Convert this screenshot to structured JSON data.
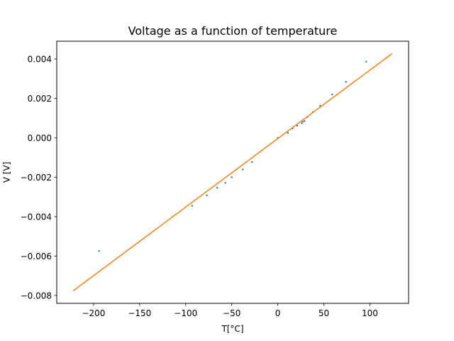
{
  "chart_data": {
    "type": "scatter",
    "title": "Voltage as a function of temperature",
    "xlabel": "T[°C]",
    "ylabel": "V [V]",
    "xlim": [
      -240,
      142
    ],
    "ylim": [
      -0.0084,
      0.0049
    ],
    "xticks": [
      -200,
      -150,
      -100,
      -50,
      0,
      50,
      100
    ],
    "xtick_labels": [
      "−200",
      "−150",
      "−100",
      "−50",
      "0",
      "50",
      "100"
    ],
    "yticks": [
      -0.008,
      -0.006,
      -0.004,
      -0.002,
      0.0,
      0.002,
      0.004
    ],
    "ytick_labels": [
      "−0.008",
      "−0.006",
      "−0.004",
      "−0.002",
      "0.000",
      "0.002",
      "0.004"
    ],
    "grid": false,
    "series": [
      {
        "kind": "scatter",
        "color": "#1f77b4",
        "x": [
          -194,
          -93,
          -77,
          -66,
          -57,
          -50,
          -38,
          -28,
          0,
          11,
          16,
          21,
          26,
          27,
          29,
          32,
          38,
          46,
          59,
          74,
          96
        ],
        "y": [
          -0.00574,
          -0.00345,
          -0.00292,
          -0.00253,
          -0.00229,
          -0.002,
          -0.00161,
          -0.00123,
          0.0,
          0.00025,
          0.00047,
          0.00061,
          0.00074,
          0.00081,
          0.00085,
          0.00105,
          0.0013,
          0.00162,
          0.0022,
          0.00284,
          0.00386
        ]
      },
      {
        "kind": "line",
        "color": "#ff7f0e",
        "x": [
          -222,
          124
        ],
        "y": [
          -0.00776,
          0.00427
        ]
      }
    ]
  }
}
